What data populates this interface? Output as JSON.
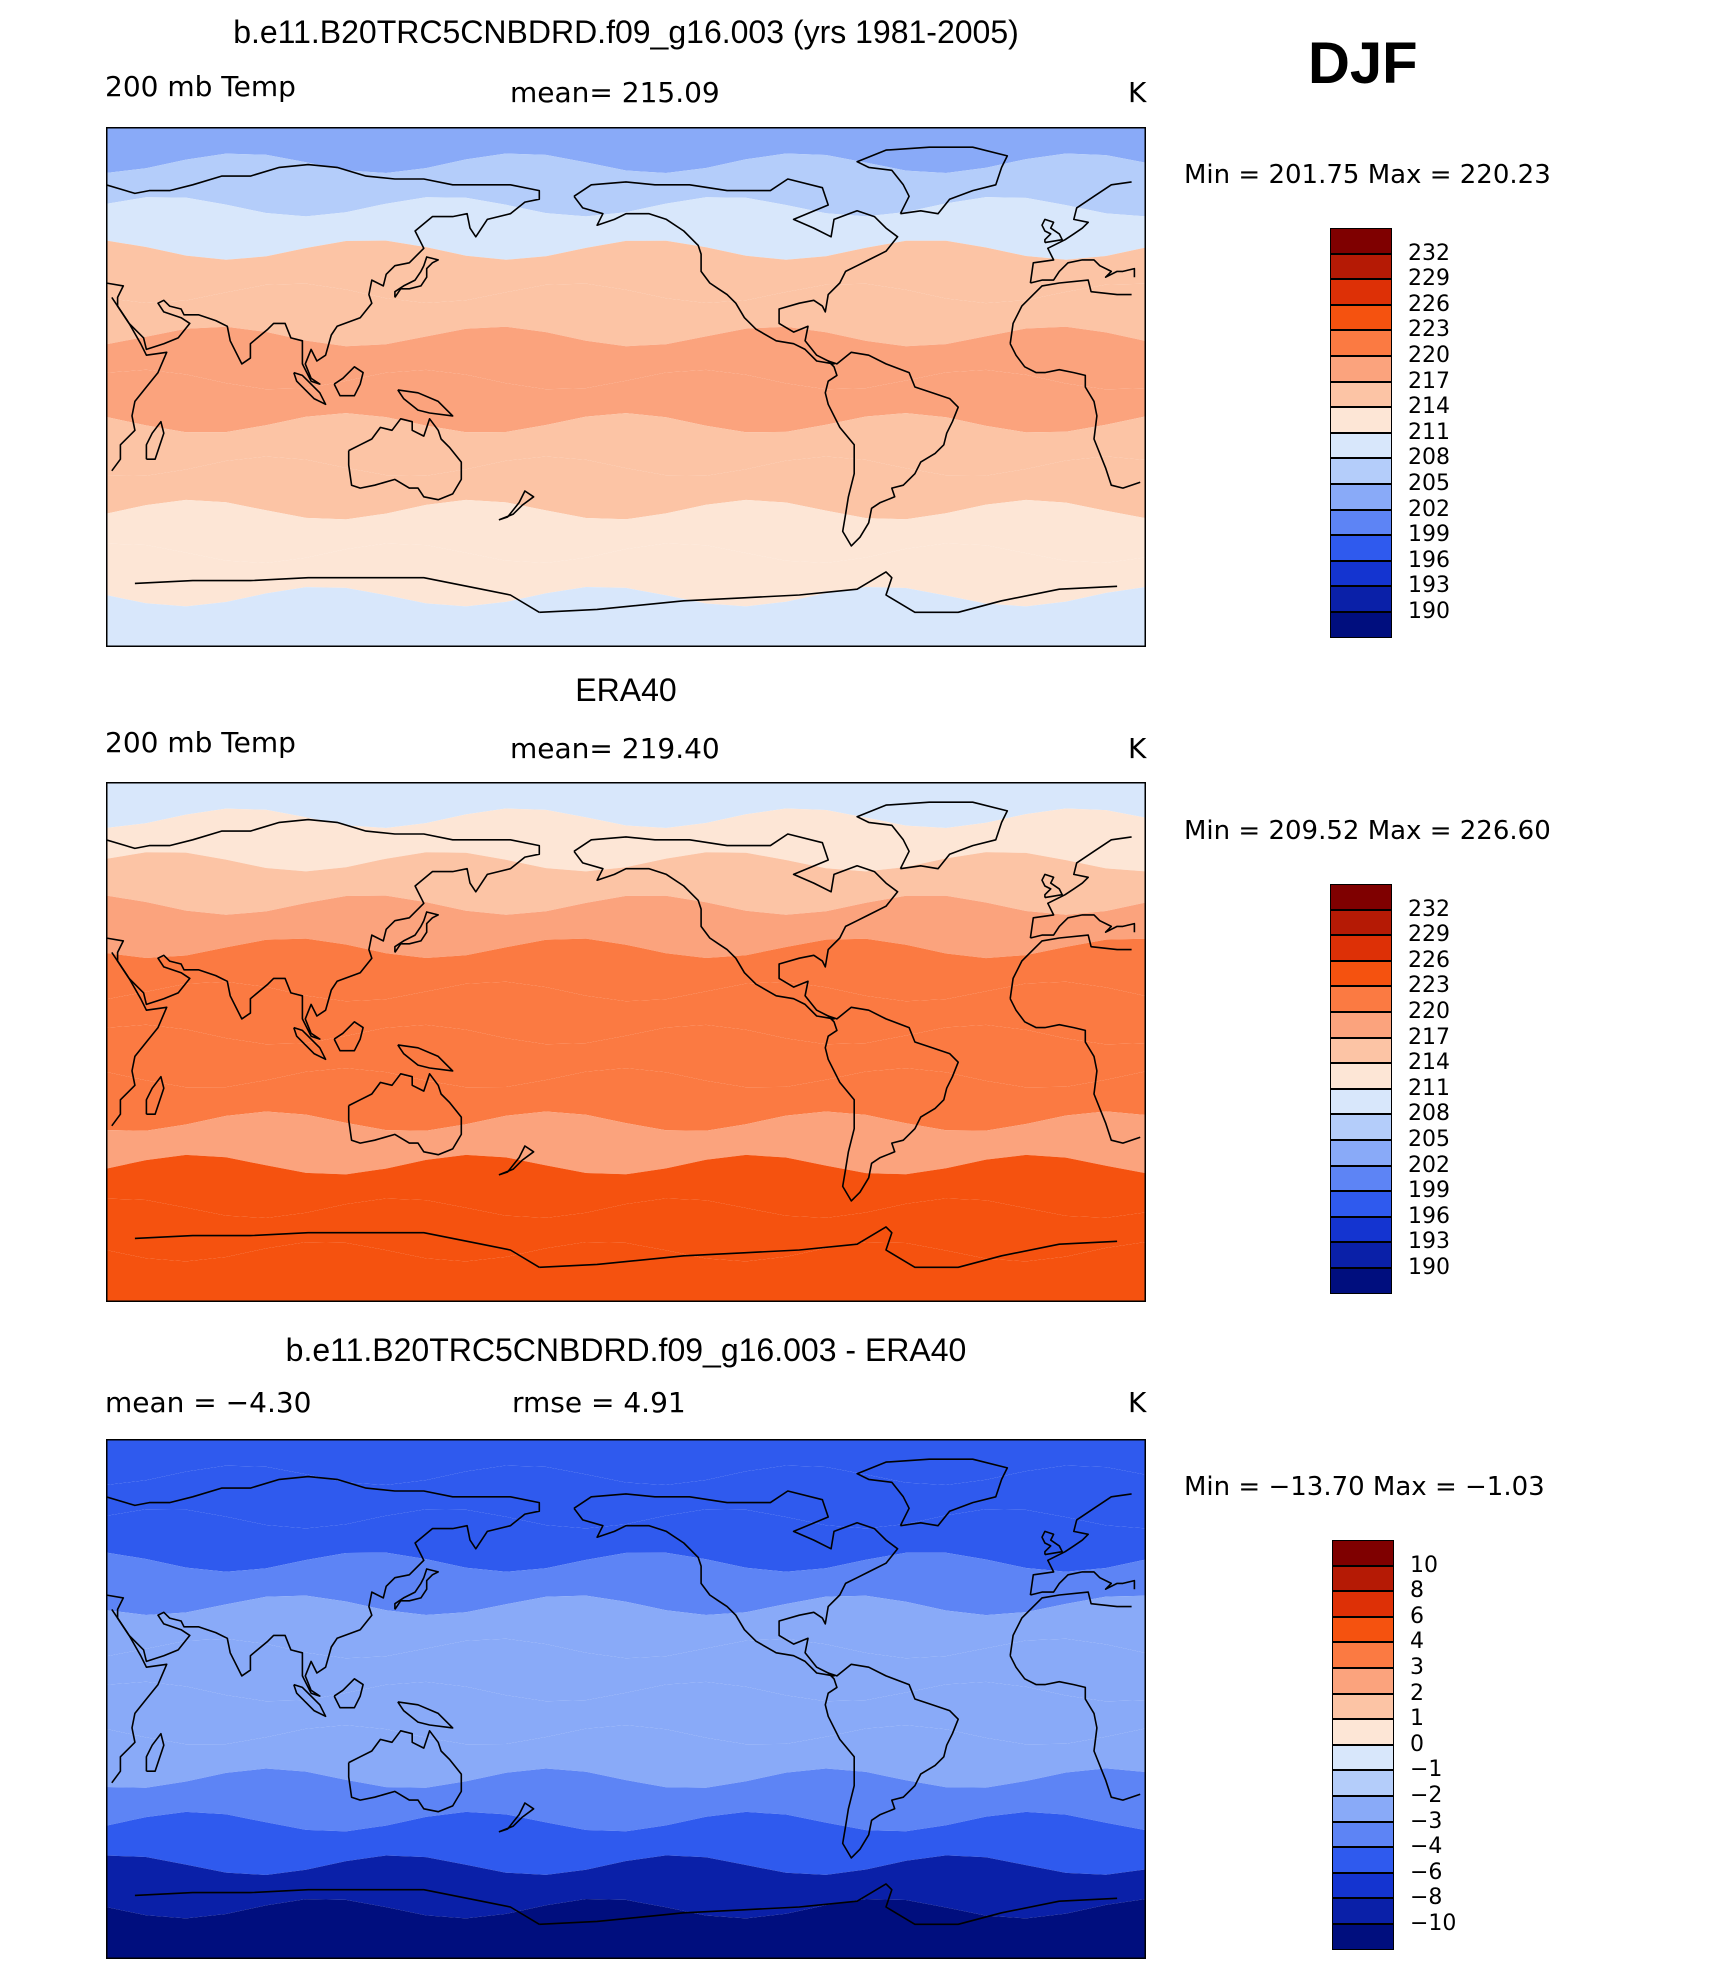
{
  "season": "DJF",
  "panels": [
    {
      "title": "b.e11.B20TRC5CNBDRD.f09_g16.003 (yrs 1981-2005)",
      "left_label": "200 mb Temp",
      "center_label": "mean=  215.09",
      "right_label": "K",
      "minmax": "Min  =  201.75  Max  =  220.23",
      "colorbar": {
        "labels": [
          "232",
          "229",
          "226",
          "223",
          "220",
          "217",
          "214",
          "211",
          "208",
          "205",
          "202",
          "199",
          "196",
          "193",
          "190"
        ],
        "colors": [
          "#7f0000",
          "#b51a05",
          "#dd3006",
          "#f5520f",
          "#fb7a42",
          "#fba37d",
          "#fcc4a5",
          "#fde6d6",
          "#d8e7fb",
          "#b4cdfa",
          "#89aaf8",
          "#5d84f5",
          "#2f5aee",
          "#1434d0",
          "#0a20a8",
          "#000e7e"
        ]
      },
      "field": {
        "name": "model",
        "mean": 215.09,
        "min": 201.75,
        "max": 220.23
      }
    },
    {
      "title": "ERA40",
      "left_label": "200 mb Temp",
      "center_label": "mean=  219.40",
      "right_label": "K",
      "minmax": "Min  =  209.52  Max  =  226.60",
      "colorbar": {
        "labels": [
          "232",
          "229",
          "226",
          "223",
          "220",
          "217",
          "214",
          "211",
          "208",
          "205",
          "202",
          "199",
          "196",
          "193",
          "190"
        ],
        "colors": [
          "#7f0000",
          "#b51a05",
          "#dd3006",
          "#f5520f",
          "#fb7a42",
          "#fba37d",
          "#fcc4a5",
          "#fde6d6",
          "#d8e7fb",
          "#b4cdfa",
          "#89aaf8",
          "#5d84f5",
          "#2f5aee",
          "#1434d0",
          "#0a20a8",
          "#000e7e"
        ]
      },
      "field": {
        "name": "obs",
        "mean": 219.4,
        "min": 209.52,
        "max": 226.6
      }
    },
    {
      "title": "b.e11.B20TRC5CNBDRD.f09_g16.003 - ERA40",
      "left_label": "mean =    −4.30",
      "center_label": "rmse =     4.91",
      "right_label": "K",
      "minmax": "Min  =  −13.70  Max  =   −1.03",
      "colorbar": {
        "labels": [
          "10",
          "8",
          "6",
          "4",
          "3",
          "2",
          "1",
          "0",
          "−1",
          "−2",
          "−3",
          "−4",
          "−6",
          "−8",
          "−10"
        ],
        "colors": [
          "#7f0000",
          "#b51a05",
          "#dd3006",
          "#f5520f",
          "#fb7a42",
          "#fba37d",
          "#fcc4a5",
          "#fde6d6",
          "#d8e7fb",
          "#b4cdfa",
          "#89aaf8",
          "#5d84f5",
          "#2f5aee",
          "#1434d0",
          "#0a20a8",
          "#000e7e"
        ]
      },
      "field": {
        "name": "diff",
        "mean": -4.3,
        "rmse": 4.91,
        "min": -13.7,
        "max": -1.03
      }
    }
  ],
  "chart_data": [
    {
      "type": "heatmap",
      "title": "b.e11.B20TRC5CNBDRD.f09_g16.003 (yrs 1981-2005)",
      "variable": "200 mb Temp",
      "units": "K",
      "mean": 215.09,
      "min": 201.75,
      "max": 220.23,
      "levels": [
        190,
        193,
        196,
        199,
        202,
        205,
        208,
        211,
        214,
        217,
        220,
        223,
        226,
        229,
        232
      ],
      "zonal_profile": {
        "lat": [
          85,
          70,
          55,
          40,
          25,
          10,
          -5,
          -20,
          -35,
          -50,
          -65,
          -80
        ],
        "value": [
          204,
          206,
          210,
          214,
          216,
          217,
          217,
          216,
          214,
          213,
          212,
          209
        ]
      }
    },
    {
      "type": "heatmap",
      "title": "ERA40",
      "variable": "200 mb Temp",
      "units": "K",
      "mean": 219.4,
      "min": 209.52,
      "max": 226.6,
      "levels": [
        190,
        193,
        196,
        199,
        202,
        205,
        208,
        211,
        214,
        217,
        220,
        223,
        226,
        229,
        232
      ],
      "zonal_profile": {
        "lat": [
          85,
          70,
          55,
          40,
          25,
          10,
          -5,
          -20,
          -35,
          -50,
          -65,
          -80
        ],
        "value": [
          210,
          213,
          215,
          219,
          221,
          222,
          222,
          221,
          218,
          224,
          225,
          223
        ]
      }
    },
    {
      "type": "heatmap",
      "title": "b.e11.B20TRC5CNBDRD.f09_g16.003 - ERA40",
      "units": "K",
      "mean": -4.3,
      "rmse": 4.91,
      "min": -13.7,
      "max": -1.03,
      "levels": [
        -10,
        -8,
        -6,
        -4,
        -3,
        -2,
        -1,
        0,
        1,
        2,
        3,
        4,
        6,
        8,
        10
      ],
      "zonal_profile": {
        "lat": [
          85,
          70,
          55,
          40,
          25,
          10,
          -5,
          -20,
          -35,
          -50,
          -65,
          -80
        ],
        "value": [
          -6,
          -6,
          -5,
          -4,
          -3,
          -3,
          -3,
          -3,
          -4,
          -6,
          -10,
          -13
        ]
      }
    }
  ]
}
